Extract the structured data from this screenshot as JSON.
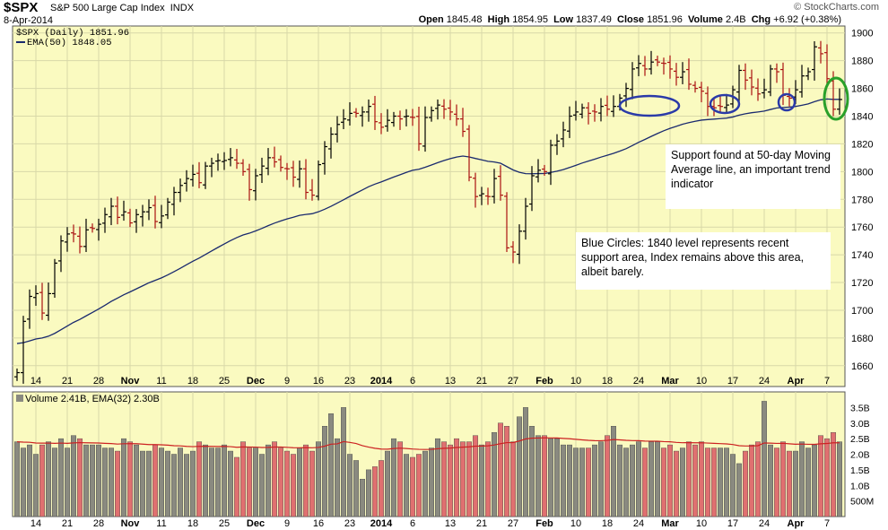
{
  "header": {
    "symbol": "$SPX",
    "name": "S&P 500 Large Cap Index",
    "exchange": "INDX",
    "date": "8-Apr-2014",
    "brand": "© StockCharts.com",
    "open_label": "Open",
    "open": "1845.48",
    "high_label": "High",
    "high": "1854.95",
    "low_label": "Low",
    "low": "1837.49",
    "close_label": "Close",
    "close": "1851.96",
    "volume_label": "Volume",
    "volume": "2.4B",
    "chg_label": "Chg",
    "chg": "+6.92 (+0.38%)"
  },
  "legend": {
    "price": "$SPX (Daily) 1851.96",
    "ema": "EMA(50) 1848.05",
    "volume": "Volume 2.41B, EMA(32) 2.30B"
  },
  "annotations": {
    "support": "Support found at 50-day Moving Average line, an important trend indicator",
    "circles": "Blue Circles:  1840 level represents recent support area, Index remains above this area, albeit barely."
  },
  "colors": {
    "background": "#fafac0",
    "up": "#000000",
    "down": "#aa1111",
    "ema": "#1a2a6e",
    "vol_up": "#8a8a80",
    "vol_down": "#e07070",
    "vol_ema": "#cc2222",
    "blue_circle": "#2a3aa8",
    "green_circle": "#2aa02a"
  },
  "chart_data": {
    "type": "ohlc",
    "title": "$SPX S&P 500 Large Cap Index",
    "x_ticks": [
      "14",
      "21",
      "28",
      "Nov",
      "11",
      "18",
      "25",
      "Dec",
      "9",
      "16",
      "23",
      "2014",
      "6",
      "13",
      "21",
      "27",
      "Feb",
      "10",
      "18",
      "24",
      "Mar",
      "10",
      "17",
      "24",
      "Apr",
      "7"
    ],
    "y_ticks": [
      1660,
      1680,
      1700,
      1720,
      1740,
      1760,
      1780,
      1800,
      1820,
      1840,
      1860,
      1880,
      1900
    ],
    "ylim": [
      1645,
      1905
    ],
    "close": [
      1655,
      1692,
      1710,
      1712,
      1698,
      1712,
      1734,
      1750,
      1755,
      1755,
      1746,
      1758,
      1759,
      1762,
      1769,
      1775,
      1767,
      1771,
      1763,
      1769,
      1771,
      1774,
      1764,
      1768,
      1778,
      1785,
      1790,
      1795,
      1798,
      1792,
      1804,
      1806,
      1808,
      1808,
      1810,
      1806,
      1800,
      1787,
      1797,
      1804,
      1810,
      1807,
      1803,
      1802,
      1796,
      1802,
      1785,
      1783,
      1805,
      1818,
      1827,
      1834,
      1838,
      1842,
      1842,
      1843,
      1847,
      1836,
      1832,
      1837,
      1840,
      1838,
      1840,
      1839,
      1820,
      1839,
      1844,
      1848,
      1845,
      1843,
      1838,
      1829,
      1796,
      1782,
      1784,
      1782,
      1795,
      1783,
      1745,
      1742,
      1757,
      1775,
      1797,
      1801,
      1800,
      1819,
      1822,
      1830,
      1840,
      1843,
      1846,
      1842,
      1843,
      1847,
      1845,
      1847,
      1853,
      1860,
      1874,
      1878,
      1874,
      1879,
      1879,
      1878,
      1874,
      1868,
      1872,
      1863,
      1860,
      1858,
      1847,
      1846,
      1847,
      1848,
      1859,
      1873,
      1866,
      1861,
      1856,
      1859,
      1874,
      1872,
      1855,
      1853,
      1859,
      1869,
      1872,
      1890,
      1885,
      1867,
      1845,
      1852
    ],
    "ema_last": 1848.05,
    "volume_ticks": [
      "500M",
      "1.0B",
      "1.5B",
      "2.0B",
      "2.5B",
      "3.0B",
      "3.5B"
    ],
    "volume": [
      2.4,
      2.2,
      2.3,
      2.0,
      2.3,
      2.4,
      2.2,
      2.5,
      2.2,
      2.6,
      2.5,
      2.3,
      2.3,
      2.3,
      2.2,
      2.2,
      2.1,
      2.5,
      2.4,
      2.3,
      2.1,
      2.1,
      2.3,
      2.2,
      2.1,
      2.0,
      2.2,
      2.0,
      2.1,
      2.4,
      2.3,
      2.2,
      2.2,
      2.3,
      2.1,
      1.9,
      2.4,
      2.2,
      2.2,
      2.0,
      2.3,
      2.4,
      2.2,
      2.1,
      2.0,
      2.2,
      2.3,
      2.1,
      2.4,
      2.9,
      3.3,
      2.5,
      3.5,
      2.0,
      1.8,
      1.2,
      1.5,
      1.6,
      1.8,
      2.1,
      2.5,
      2.4,
      2.0,
      1.9,
      2.0,
      2.1,
      2.2,
      2.5,
      2.4,
      2.3,
      2.5,
      2.4,
      2.4,
      2.6,
      2.3,
      2.4,
      2.7,
      3.0,
      2.9,
      2.4,
      3.2,
      3.5,
      2.9,
      2.6,
      2.6,
      2.5,
      2.5,
      2.3,
      2.3,
      2.2,
      2.2,
      2.2,
      2.3,
      2.4,
      2.6,
      2.9,
      2.3,
      2.2,
      2.3,
      2.4,
      2.2,
      2.4,
      2.4,
      2.2,
      2.3,
      2.1,
      2.2,
      2.4,
      2.3,
      2.4,
      2.2,
      2.2,
      2.2,
      2.2,
      2.0,
      1.7,
      2.1,
      2.3,
      2.4,
      3.7,
      2.3,
      2.2,
      2.4,
      2.1,
      2.1,
      2.4,
      2.2,
      2.3,
      2.6,
      2.5,
      2.7,
      2.4
    ],
    "volume_ema_last": 2.3
  }
}
